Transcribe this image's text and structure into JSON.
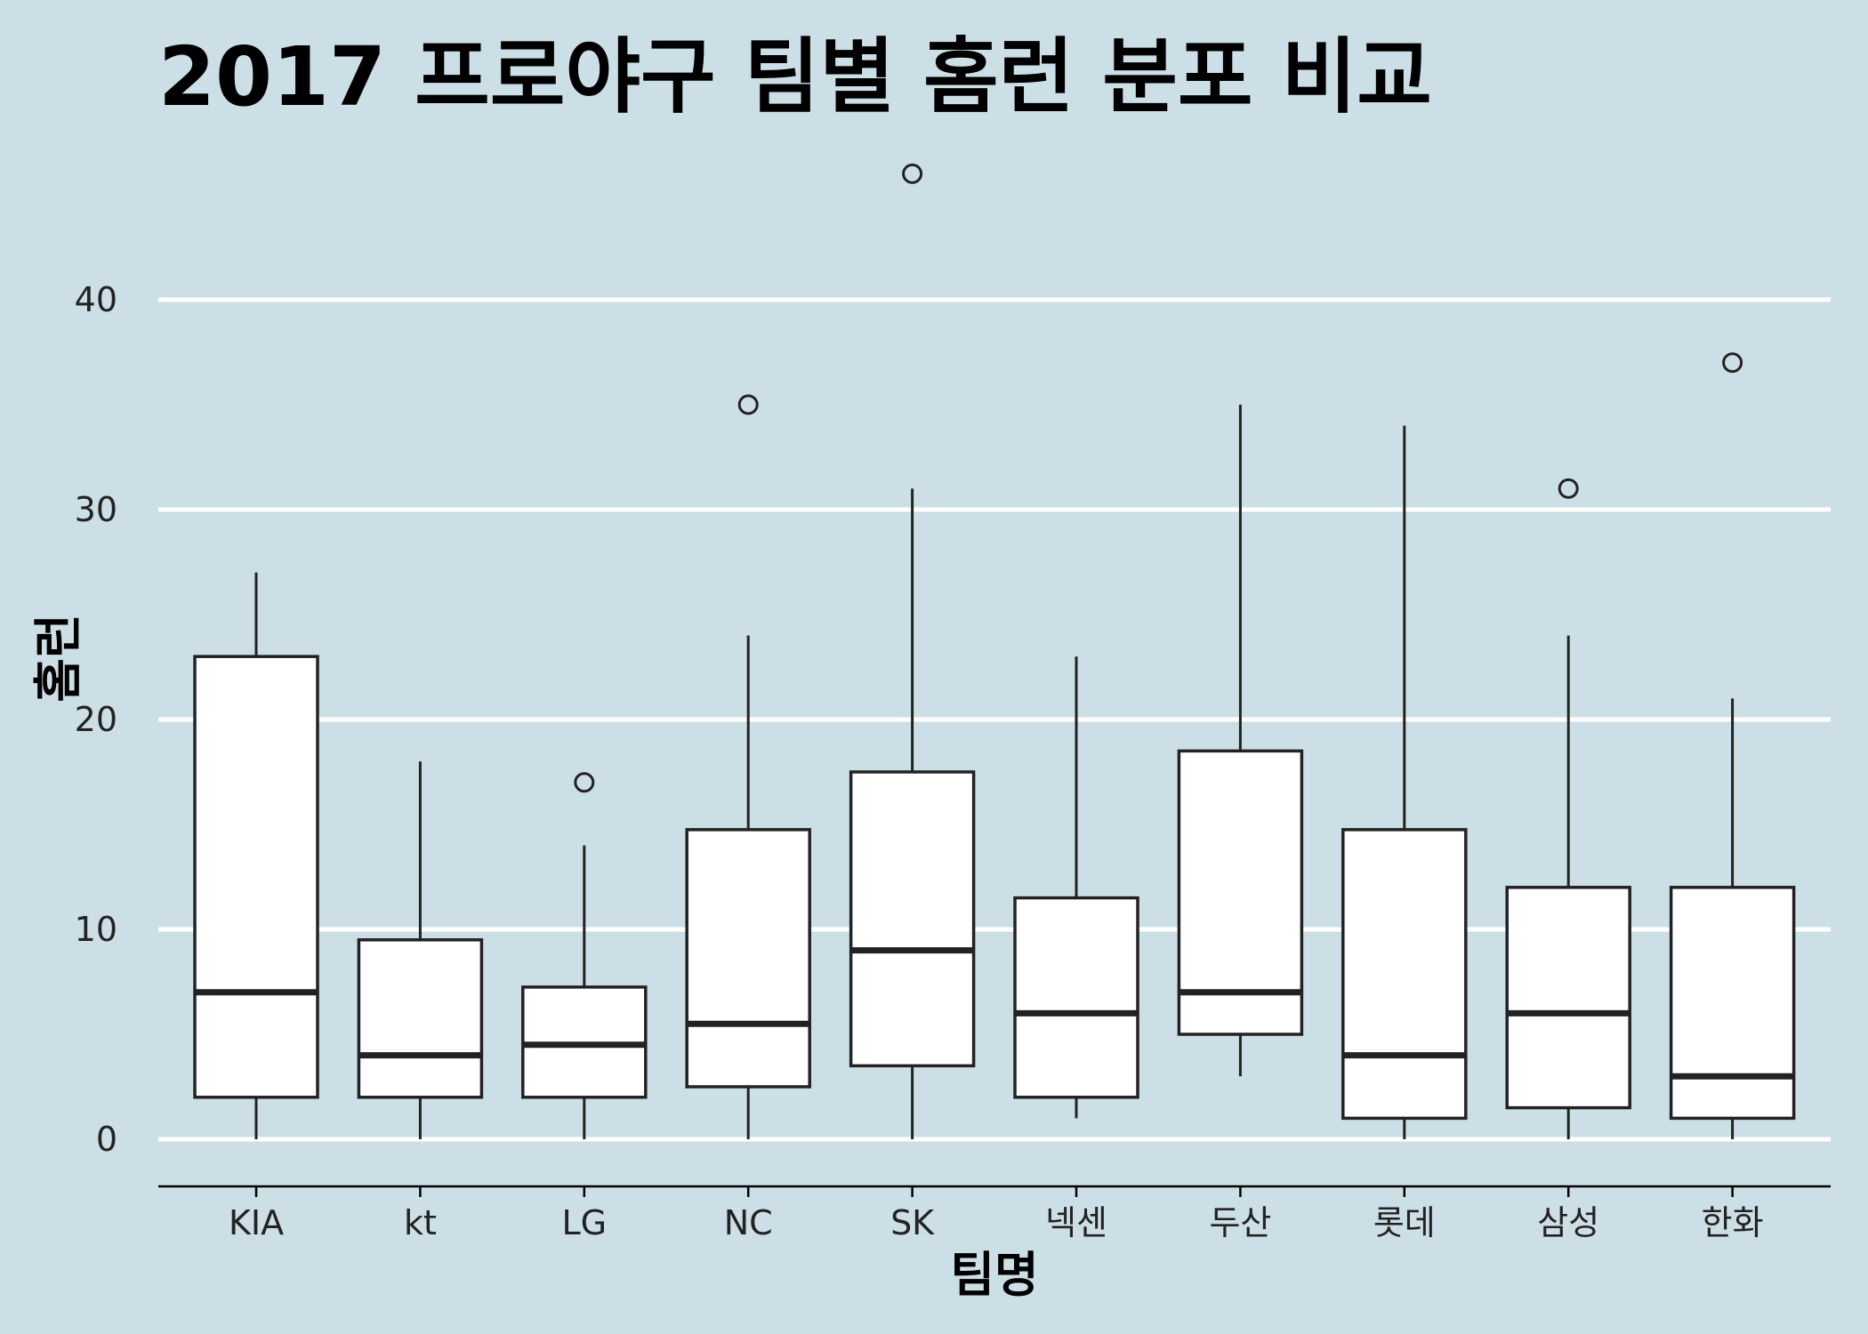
{
  "chart_data": {
    "type": "boxplot",
    "title": "2017 프로야구 팀별 홈런 분포 비교",
    "xlabel": "팀명",
    "ylabel": "홈런",
    "ylim": [
      -2.2,
      46
    ],
    "yticks": [
      0,
      10,
      20,
      30,
      40
    ],
    "grid": "horizontal",
    "colors": {
      "background": "#cddfe6",
      "grid": "#ffffff",
      "box_fill": "#ffffff",
      "stroke": "#222222"
    },
    "categories": [
      "KIA",
      "kt",
      "LG",
      "NC",
      "SK",
      "넥센",
      "두산",
      "롯데",
      "삼성",
      "한화"
    ],
    "boxes": [
      {
        "team": "KIA",
        "whisker_low": 0,
        "q1": 2,
        "median": 7,
        "q3": 23,
        "whisker_high": 27,
        "outliers": []
      },
      {
        "team": "kt",
        "whisker_low": 0,
        "q1": 2,
        "median": 4,
        "q3": 9.5,
        "whisker_high": 18,
        "outliers": []
      },
      {
        "team": "LG",
        "whisker_low": 0,
        "q1": 2,
        "median": 4.5,
        "q3": 7.25,
        "whisker_high": 14,
        "outliers": [
          17
        ]
      },
      {
        "team": "NC",
        "whisker_low": 0,
        "q1": 2.5,
        "median": 5.5,
        "q3": 14.75,
        "whisker_high": 24,
        "outliers": [
          35
        ]
      },
      {
        "team": "SK",
        "whisker_low": 0,
        "q1": 3.5,
        "median": 9,
        "q3": 17.5,
        "whisker_high": 31,
        "outliers": [
          46
        ]
      },
      {
        "team": "넥센",
        "whisker_low": 1,
        "q1": 2,
        "median": 6,
        "q3": 11.5,
        "whisker_high": 23,
        "outliers": []
      },
      {
        "team": "두산",
        "whisker_low": 3,
        "q1": 5,
        "median": 7,
        "q3": 18.5,
        "whisker_high": 35,
        "outliers": []
      },
      {
        "team": "롯데",
        "whisker_low": 0,
        "q1": 1,
        "median": 4,
        "q3": 14.75,
        "whisker_high": 34,
        "outliers": []
      },
      {
        "team": "삼성",
        "whisker_low": 0,
        "q1": 1.5,
        "median": 6,
        "q3": 12,
        "whisker_high": 24,
        "outliers": [
          31
        ]
      },
      {
        "team": "한화",
        "whisker_low": 0,
        "q1": 1,
        "median": 3,
        "q3": 12,
        "whisker_high": 21,
        "outliers": [
          37
        ]
      }
    ]
  }
}
